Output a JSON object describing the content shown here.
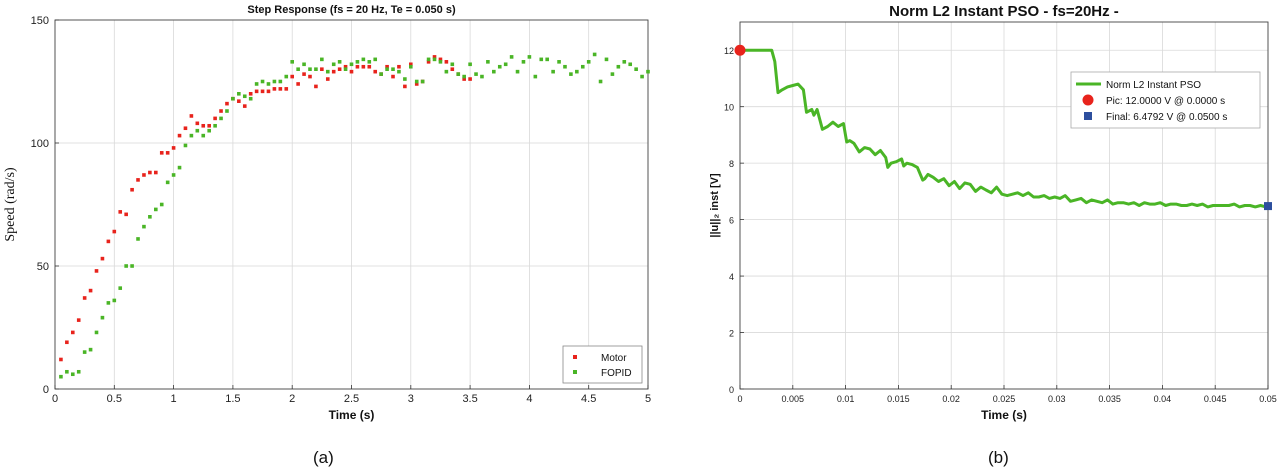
{
  "panels": {
    "a_caption": "(a)",
    "b_caption": "(b)"
  },
  "chart_data": [
    {
      "type": "scatter",
      "title": "Step Response (fs = 20 Hz, Te = 0.050 s)",
      "xlabel": "Time (s)",
      "ylabel": "Speed (rad/s)",
      "xlim": [
        0,
        5
      ],
      "ylim": [
        0,
        150
      ],
      "xticks": [
        0,
        0.5,
        1,
        1.5,
        2,
        2.5,
        3,
        3.5,
        4,
        4.5,
        5
      ],
      "xtick_labels": [
        "0",
        "0.5",
        "1",
        "1.5",
        "2",
        "2.5",
        "3",
        "3.5",
        "4",
        "4.5",
        "5"
      ],
      "yticks": [
        0,
        50,
        100,
        150
      ],
      "ytick_labels": [
        "0",
        "50",
        "100",
        "150"
      ],
      "grid": true,
      "legend": "bottom-right",
      "series": [
        {
          "name": "Motor",
          "color": "#e8231c",
          "x": [
            0.05,
            0.1,
            0.15,
            0.2,
            0.25,
            0.3,
            0.35,
            0.4,
            0.45,
            0.5,
            0.55,
            0.6,
            0.65,
            0.7,
            0.75,
            0.8,
            0.85,
            0.9,
            0.95,
            1.0,
            1.05,
            1.1,
            1.15,
            1.2,
            1.25,
            1.3,
            1.35,
            1.4,
            1.45,
            1.5,
            1.55,
            1.6,
            1.65,
            1.7,
            1.75,
            1.8,
            1.85,
            1.9,
            1.95,
            2.0,
            2.05,
            2.1,
            2.15,
            2.2,
            2.25,
            2.3,
            2.35,
            2.4,
            2.45,
            2.5,
            2.55,
            2.6,
            2.65,
            2.7,
            2.75,
            2.8,
            2.85,
            2.9,
            2.95,
            3.0,
            3.05,
            3.1,
            3.15,
            3.2,
            3.25,
            3.3,
            3.35,
            3.4,
            3.45,
            3.5
          ],
          "y": [
            12,
            19,
            23,
            28,
            37,
            40,
            48,
            53,
            60,
            64,
            72,
            71,
            81,
            85,
            87,
            88,
            88,
            96,
            96,
            98,
            103,
            106,
            111,
            108,
            107,
            107,
            110,
            113,
            116,
            118,
            117,
            115,
            120,
            121,
            121,
            121,
            122,
            122,
            122,
            127,
            124,
            128,
            127,
            123,
            130,
            126,
            129,
            130,
            131,
            129,
            131,
            131,
            131,
            129,
            128,
            131,
            127,
            131,
            123,
            132,
            124,
            125,
            133,
            135,
            134,
            133,
            130,
            128,
            126,
            126
          ]
        },
        {
          "name": "FOPID",
          "color": "#4ab526",
          "x": [
            0.05,
            0.1,
            0.15,
            0.2,
            0.25,
            0.3,
            0.35,
            0.4,
            0.45,
            0.5,
            0.55,
            0.6,
            0.65,
            0.7,
            0.75,
            0.8,
            0.85,
            0.9,
            0.95,
            1.0,
            1.05,
            1.1,
            1.15,
            1.2,
            1.25,
            1.3,
            1.35,
            1.4,
            1.45,
            1.5,
            1.55,
            1.6,
            1.65,
            1.7,
            1.75,
            1.8,
            1.85,
            1.9,
            1.95,
            2.0,
            2.05,
            2.1,
            2.15,
            2.2,
            2.25,
            2.3,
            2.35,
            2.4,
            2.45,
            2.5,
            2.55,
            2.6,
            2.65,
            2.7,
            2.75,
            2.8,
            2.85,
            2.9,
            2.95,
            3.0,
            3.05,
            3.1,
            3.15,
            3.2,
            3.25,
            3.3,
            3.35,
            3.4,
            3.45,
            3.5,
            3.55,
            3.6,
            3.65,
            3.7,
            3.75,
            3.8,
            3.85,
            3.9,
            3.95,
            4.0,
            4.05,
            4.1,
            4.15,
            4.2,
            4.25,
            4.3,
            4.35,
            4.4,
            4.45,
            4.5,
            4.55,
            4.6,
            4.65,
            4.7,
            4.75,
            4.8,
            4.85,
            4.9,
            4.95,
            5.0
          ],
          "y": [
            5,
            7,
            6,
            7,
            15,
            16,
            23,
            29,
            35,
            36,
            41,
            50,
            50,
            61,
            66,
            70,
            73,
            75,
            84,
            87,
            90,
            99,
            103,
            105,
            103,
            105,
            107,
            110,
            113,
            118,
            120,
            119,
            118,
            124,
            125,
            124,
            125,
            125,
            127,
            133,
            130,
            132,
            130,
            130,
            134,
            129,
            132,
            133,
            130,
            132,
            133,
            134,
            133,
            134,
            128,
            130,
            130,
            129,
            126,
            131,
            125,
            125,
            134,
            134,
            133,
            129,
            132,
            128,
            127,
            132,
            128,
            127,
            133,
            129,
            131,
            132,
            135,
            129,
            133,
            135,
            127,
            134,
            134,
            129,
            133,
            131,
            128,
            129,
            131,
            133,
            136,
            125,
            134,
            128,
            131,
            133,
            132,
            130,
            127,
            129
          ]
        }
      ]
    },
    {
      "type": "line",
      "title": "Norm L2 Instant PSO - fs=20Hz -",
      "xlabel": "Time (s)",
      "ylabel": "||u||₂ inst [V]",
      "xlim": [
        0,
        0.05
      ],
      "ylim": [
        0,
        13
      ],
      "xticks": [
        0,
        0.005,
        0.01,
        0.015,
        0.02,
        0.025,
        0.03,
        0.035,
        0.04,
        0.045,
        0.05
      ],
      "xtick_labels": [
        "0",
        "0.005",
        "0.01",
        "0.015",
        "0.02",
        "0.025",
        "0.03",
        "0.035",
        "0.04",
        "0.045",
        "0.05"
      ],
      "yticks": [
        0,
        2,
        4,
        6,
        8,
        10,
        12
      ],
      "ytick_labels": [
        "0",
        "2",
        "4",
        "6",
        "8",
        "10",
        "12"
      ],
      "grid": true,
      "legend": "top-right",
      "series": [
        {
          "name": "Norm L2 Instant PSO",
          "color": "#4ab526",
          "x": [
            0,
            0.0005,
            0.001,
            0.0015,
            0.002,
            0.0025,
            0.003,
            0.0033,
            0.0036,
            0.004,
            0.0045,
            0.005,
            0.0055,
            0.006,
            0.0063,
            0.0068,
            0.007,
            0.0073,
            0.0078,
            0.0083,
            0.0088,
            0.0093,
            0.0098,
            0.0101,
            0.0104,
            0.0108,
            0.0113,
            0.0118,
            0.0123,
            0.0128,
            0.0133,
            0.0138,
            0.014,
            0.0143,
            0.0148,
            0.0153,
            0.0155,
            0.0158,
            0.0163,
            0.0168,
            0.0173,
            0.0175,
            0.0178,
            0.0183,
            0.0188,
            0.0193,
            0.0198,
            0.0203,
            0.0208,
            0.0213,
            0.0218,
            0.0223,
            0.0228,
            0.0233,
            0.0238,
            0.0243,
            0.0248,
            0.0253,
            0.0258,
            0.0263,
            0.0268,
            0.0273,
            0.0278,
            0.0283,
            0.0288,
            0.0293,
            0.0298,
            0.0303,
            0.0308,
            0.0313,
            0.0318,
            0.0323,
            0.0328,
            0.0333,
            0.0338,
            0.0343,
            0.0348,
            0.0353,
            0.0358,
            0.0363,
            0.0368,
            0.0373,
            0.0378,
            0.0383,
            0.0388,
            0.0393,
            0.0398,
            0.0403,
            0.0408,
            0.0413,
            0.0418,
            0.0423,
            0.0428,
            0.0433,
            0.0438,
            0.0443,
            0.0448,
            0.0453,
            0.0458,
            0.0463,
            0.0468,
            0.0473,
            0.0478,
            0.0483,
            0.0488,
            0.0493,
            0.0498,
            0.05
          ],
          "y": [
            12,
            12,
            12,
            12,
            12,
            12,
            12,
            11.6,
            10.5,
            10.6,
            10.7,
            10.75,
            10.8,
            10.6,
            9.8,
            9.9,
            9.7,
            9.9,
            9.2,
            9.3,
            9.45,
            9.3,
            9.4,
            8.75,
            8.8,
            8.7,
            8.4,
            8.55,
            8.5,
            8.3,
            8.45,
            8.2,
            7.85,
            8.0,
            8.05,
            8.15,
            7.9,
            8.0,
            7.95,
            7.85,
            7.4,
            7.45,
            7.6,
            7.5,
            7.35,
            7.45,
            7.2,
            7.35,
            7.1,
            7.3,
            7.25,
            7.0,
            7.15,
            7.05,
            6.95,
            7.15,
            6.9,
            6.85,
            6.9,
            6.95,
            6.85,
            6.95,
            6.8,
            6.8,
            6.85,
            6.75,
            6.8,
            6.75,
            6.85,
            6.65,
            6.7,
            6.75,
            6.6,
            6.7,
            6.65,
            6.6,
            6.7,
            6.55,
            6.6,
            6.6,
            6.55,
            6.6,
            6.5,
            6.6,
            6.55,
            6.55,
            6.6,
            6.5,
            6.55,
            6.55,
            6.5,
            6.5,
            6.55,
            6.5,
            6.55,
            6.45,
            6.5,
            6.5,
            6.5,
            6.5,
            6.55,
            6.45,
            6.5,
            6.5,
            6.45,
            6.5,
            6.45,
            6.48
          ]
        }
      ],
      "markers": [
        {
          "name": "Pic: 12.0000 V @ 0.0000 s",
          "x": 0.0,
          "y": 12.0,
          "color": "#e8231c",
          "shape": "circle"
        },
        {
          "name": "Final: 6.4792 V @ 0.0500 s",
          "x": 0.05,
          "y": 6.4792,
          "color": "#2d4f9e",
          "shape": "square"
        }
      ]
    }
  ]
}
